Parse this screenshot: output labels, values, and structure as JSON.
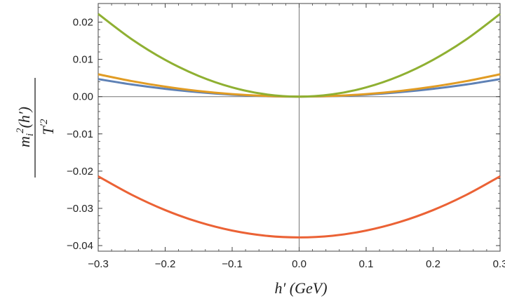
{
  "chart_data": {
    "type": "line",
    "title": "",
    "xlabel": "h′ (GeV)",
    "ylabel": {
      "numerator_base": "m",
      "numerator_sub": "i",
      "numerator_sup": "2",
      "numerator_arg": "(h′)",
      "denominator_base": "T",
      "denominator_sup": "′2"
    },
    "xlim": [
      -0.3,
      0.3
    ],
    "ylim": [
      -0.0415,
      0.025
    ],
    "x_ticks": [
      -0.3,
      -0.2,
      -0.1,
      0.0,
      0.1,
      0.2,
      0.3
    ],
    "x_tick_labels": [
      "−0.3",
      "−0.2",
      "−0.1",
      "0.0",
      "0.1",
      "0.2",
      "0.3"
    ],
    "y_ticks": [
      0.02,
      0.01,
      0.0,
      -0.01,
      -0.02,
      -0.03,
      -0.04
    ],
    "y_tick_labels": [
      "0.02",
      "0.01",
      "0.00",
      "−0.01",
      "−0.02",
      "−0.03",
      "−0.04"
    ],
    "grid": false,
    "legend": "none",
    "x": [
      -0.3,
      -0.25,
      -0.2,
      -0.15,
      -0.1,
      -0.05,
      0.0,
      0.05,
      0.1,
      0.15,
      0.2,
      0.25,
      0.3
    ],
    "series": [
      {
        "color": "#5e81b5",
        "values": [
          0.0047,
          0.00326,
          0.00209,
          0.00118,
          0.00052,
          0.00013,
          0.0,
          0.00013,
          0.00052,
          0.00118,
          0.00209,
          0.00326,
          0.0047
        ]
      },
      {
        "color": "#e19c24",
        "values": [
          0.006,
          0.00417,
          0.00267,
          0.0015,
          0.00067,
          0.00017,
          0.0,
          0.00017,
          0.00067,
          0.0015,
          0.00267,
          0.00417,
          0.006
        ]
      },
      {
        "color": "#8fb032",
        "values": [
          0.0222,
          0.01542,
          0.00987,
          0.00555,
          0.00247,
          0.00062,
          0.0,
          0.00062,
          0.00247,
          0.00555,
          0.00987,
          0.01542,
          0.0222
        ]
      },
      {
        "color": "#eb6235",
        "values": [
          -0.0214,
          -0.02635,
          -0.03047,
          -0.03368,
          -0.03597,
          -0.03735,
          -0.0378,
          -0.03735,
          -0.03597,
          -0.03368,
          -0.03047,
          -0.02635,
          -0.0214
        ]
      }
    ]
  }
}
